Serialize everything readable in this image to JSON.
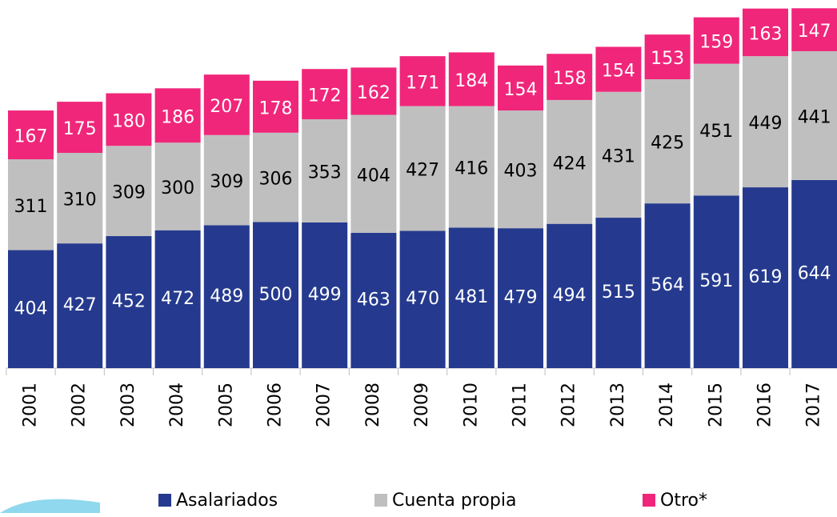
{
  "chart_data": {
    "type": "stacked_bar",
    "categories": [
      "2001",
      "2002",
      "2003",
      "2004",
      "2005",
      "2006",
      "2007",
      "2008",
      "2009",
      "2010",
      "2011",
      "2012",
      "2013",
      "2014",
      "2015",
      "2016",
      "2017"
    ],
    "series": [
      {
        "name": "Asalariados",
        "color": "#253a8e",
        "label_color": "#ffffff",
        "values": [
          404,
          427,
          452,
          472,
          489,
          500,
          499,
          463,
          470,
          481,
          479,
          494,
          515,
          564,
          591,
          619,
          644
        ]
      },
      {
        "name": "Cuenta propia",
        "color": "#bfbfbf",
        "label_color": "#000000",
        "values": [
          311,
          310,
          309,
          300,
          309,
          306,
          353,
          404,
          427,
          416,
          403,
          424,
          431,
          425,
          451,
          449,
          441
        ]
      },
      {
        "name": "Otro*",
        "color": "#f0267a",
        "label_color": "#ffffff",
        "values": [
          167,
          175,
          180,
          186,
          207,
          178,
          172,
          162,
          171,
          184,
          154,
          158,
          154,
          153,
          159,
          163,
          147
        ]
      }
    ]
  }
}
